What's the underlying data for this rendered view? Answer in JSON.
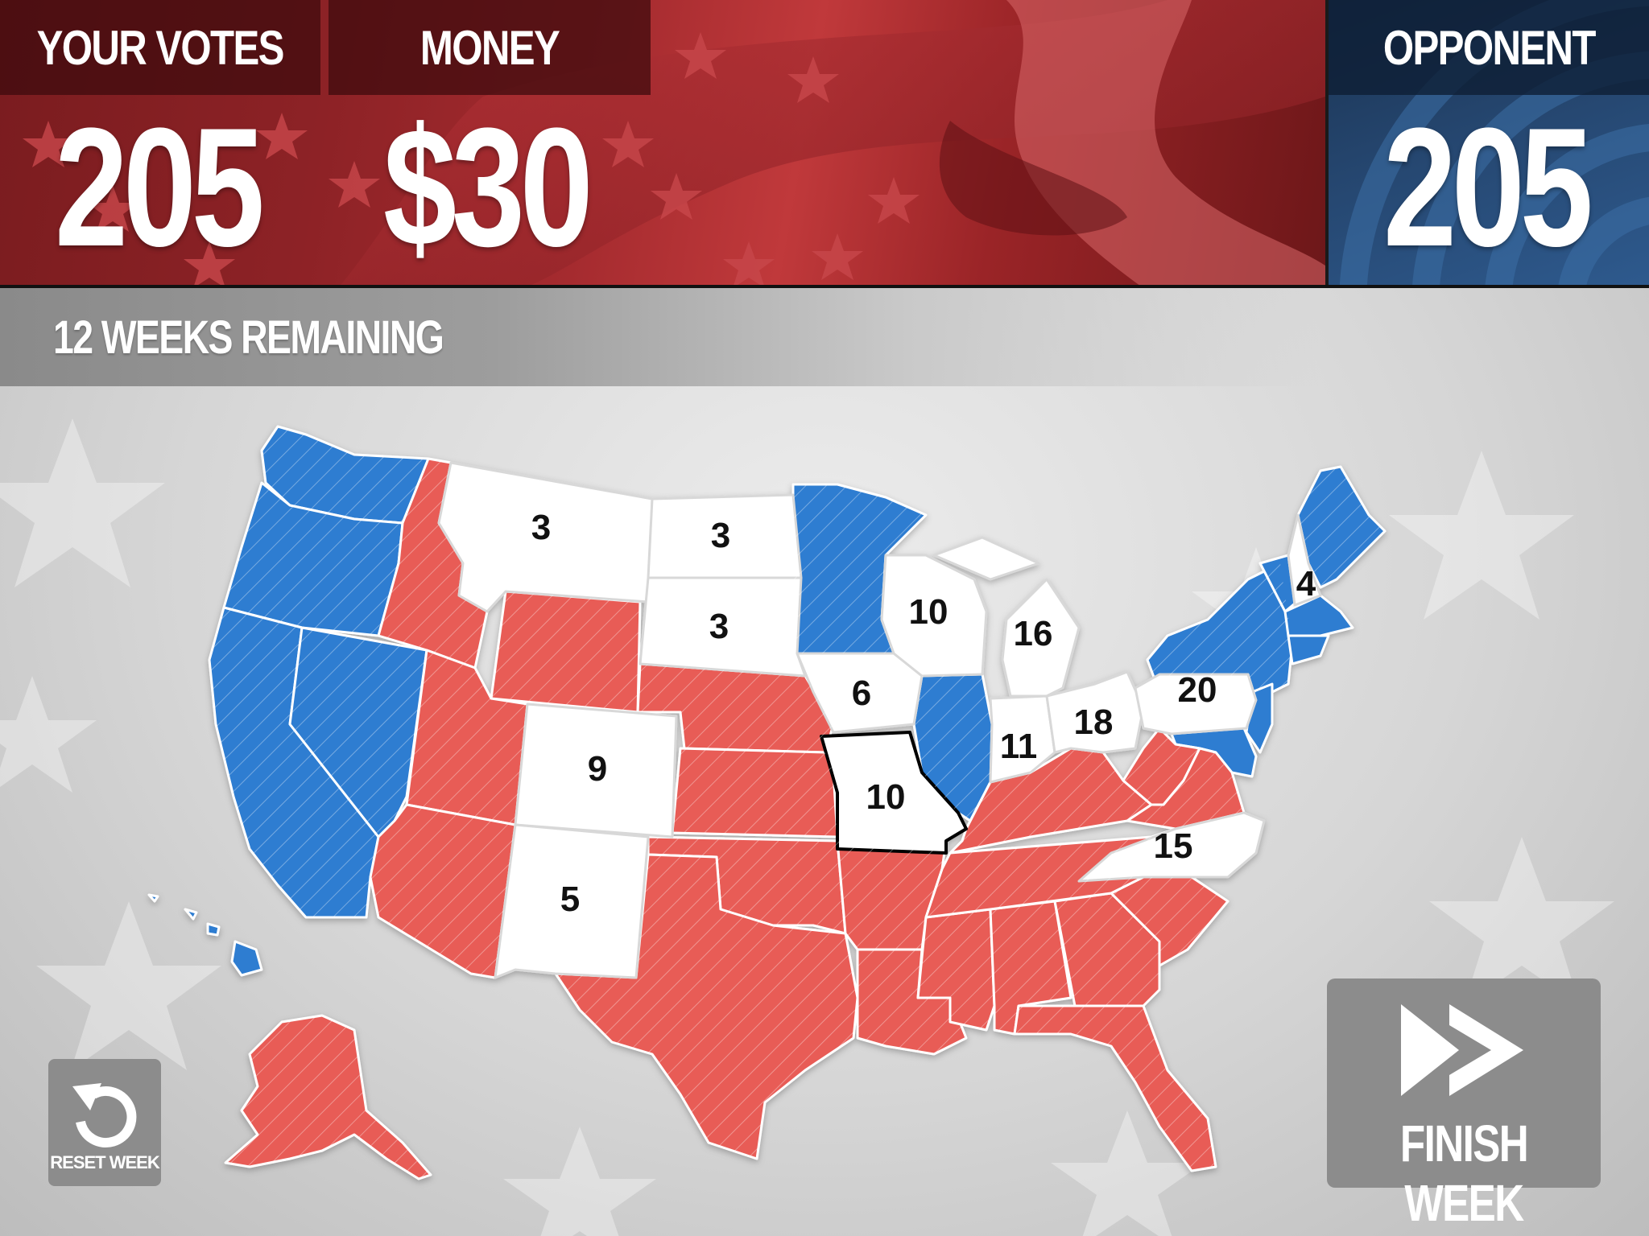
{
  "header": {
    "your_votes_label": "YOUR VOTES",
    "your_votes_value": "205",
    "money_label": "MONEY",
    "money_value": "$30",
    "opponent_label": "OPPONENT",
    "opponent_value": "205"
  },
  "status": {
    "weeks_remaining": "12 WEEKS REMAINING"
  },
  "map": {
    "colors": {
      "player": "#e85c57",
      "opponent": "#2f7dd1",
      "undecided": "#ffffff",
      "selected_outline": "#000000"
    },
    "labels": {
      "montana": "3",
      "north_dakota": "3",
      "south_dakota": "3",
      "colorado": "9",
      "new_mexico": "5",
      "iowa": "6",
      "missouri": "10",
      "wisconsin": "10",
      "michigan": "16",
      "indiana": "11",
      "ohio": "18",
      "pennsylvania": "20",
      "north_carolina": "15",
      "new_hampshire": "4"
    }
  },
  "controls": {
    "reset_label": "RESET WEEK",
    "reset_icon": "undo-arrow-icon",
    "finish_label": "FINISH WEEK",
    "finish_icon": "fast-forward-icon"
  }
}
